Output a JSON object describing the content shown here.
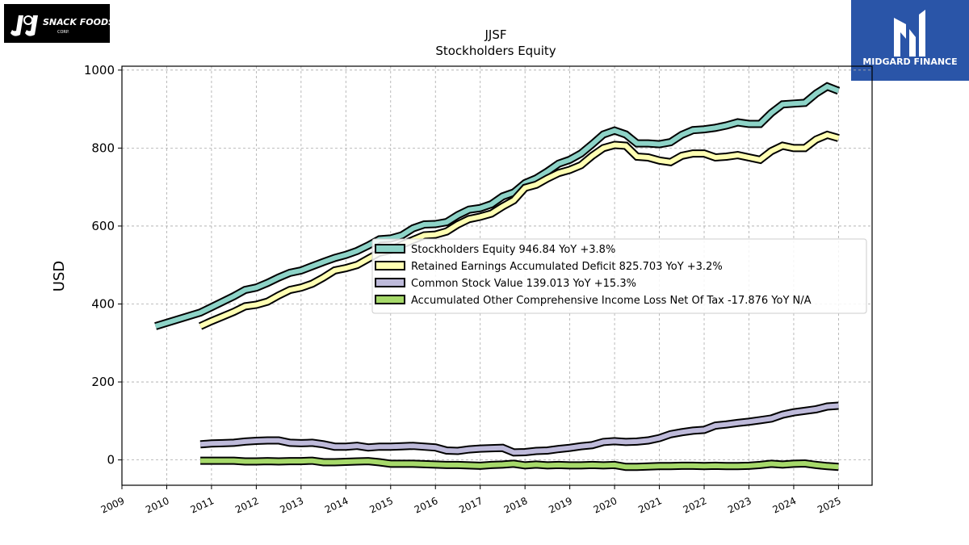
{
  "brand": {
    "left_logo_text": "J&J SNACK FOODS",
    "right_logo_text": "MIDGARD FINANCE"
  },
  "chart_data": {
    "type": "line",
    "title": "JJSF",
    "subtitle": "Stockholders  Equity",
    "xlabel": "",
    "ylabel": "USD",
    "xlim": [
      2009.0,
      2025.75
    ],
    "ylim": [
      -65,
      1010
    ],
    "yticks": [
      0,
      200,
      400,
      600,
      800,
      1000
    ],
    "xticks": [
      2009,
      2010,
      2011,
      2012,
      2013,
      2014,
      2015,
      2016,
      2017,
      2018,
      2019,
      2020,
      2021,
      2022,
      2023,
      2024,
      2025
    ],
    "grid": true,
    "legend_position": "center-right",
    "series": [
      {
        "name": "Stockholders Equity",
        "legend": "Stockholders Equity  946.84 YoY +3.8%",
        "color": "#8dd3c7",
        "points": [
          [
            2009.75,
            343
          ],
          [
            2010.75,
            378
          ],
          [
            2011.0,
            392
          ],
          [
            2011.25,
            406
          ],
          [
            2011.5,
            420
          ],
          [
            2011.75,
            436
          ],
          [
            2012.0,
            442
          ],
          [
            2012.25,
            454
          ],
          [
            2012.5,
            468
          ],
          [
            2012.75,
            480
          ],
          [
            2013.0,
            486
          ],
          [
            2013.25,
            497
          ],
          [
            2013.5,
            508
          ],
          [
            2013.75,
            518
          ],
          [
            2014.0,
            526
          ],
          [
            2014.25,
            536
          ],
          [
            2014.5,
            550
          ],
          [
            2014.75,
            566
          ],
          [
            2015.0,
            568
          ],
          [
            2015.25,
            576
          ],
          [
            2015.5,
            594
          ],
          [
            2015.75,
            604
          ],
          [
            2016.0,
            605
          ],
          [
            2016.25,
            610
          ],
          [
            2016.5,
            628
          ],
          [
            2016.75,
            642
          ],
          [
            2017.0,
            646
          ],
          [
            2017.25,
            656
          ],
          [
            2017.5,
            676
          ],
          [
            2017.75,
            686
          ],
          [
            2018.0,
            710
          ],
          [
            2018.25,
            722
          ],
          [
            2018.5,
            740
          ],
          [
            2018.75,
            760
          ],
          [
            2019.0,
            770
          ],
          [
            2019.25,
            786
          ],
          [
            2019.5,
            810
          ],
          [
            2019.75,
            835
          ],
          [
            2020.0,
            845
          ],
          [
            2020.25,
            835
          ],
          [
            2020.5,
            812
          ],
          [
            2020.75,
            812
          ],
          [
            2021.0,
            810
          ],
          [
            2021.25,
            815
          ],
          [
            2021.5,
            834
          ],
          [
            2021.75,
            846
          ],
          [
            2022.0,
            848
          ],
          [
            2022.25,
            852
          ],
          [
            2022.5,
            858
          ],
          [
            2022.75,
            866
          ],
          [
            2023.0,
            862
          ],
          [
            2023.25,
            862
          ],
          [
            2023.5,
            890
          ],
          [
            2023.75,
            912
          ],
          [
            2024.0,
            914
          ],
          [
            2024.25,
            916
          ],
          [
            2024.5,
            940
          ],
          [
            2024.75,
            958
          ],
          [
            2025.0,
            946.84
          ]
        ]
      },
      {
        "name": "Retained Earnings Accumulated Deficit",
        "legend": "Retained Earnings Accumulated Deficit  825.703 YoY +3.2%",
        "color": "#ffffb3",
        "points": [
          [
            2010.75,
            343
          ],
          [
            2011.0,
            356
          ],
          [
            2011.25,
            368
          ],
          [
            2011.5,
            380
          ],
          [
            2011.75,
            394
          ],
          [
            2012.0,
            398
          ],
          [
            2012.25,
            406
          ],
          [
            2012.5,
            422
          ],
          [
            2012.75,
            436
          ],
          [
            2013.0,
            442
          ],
          [
            2013.25,
            452
          ],
          [
            2013.5,
            468
          ],
          [
            2013.75,
            486
          ],
          [
            2014.0,
            492
          ],
          [
            2014.25,
            500
          ],
          [
            2014.5,
            516
          ],
          [
            2014.75,
            532
          ],
          [
            2015.0,
            538
          ],
          [
            2015.25,
            552
          ],
          [
            2015.5,
            564
          ],
          [
            2015.75,
            576
          ],
          [
            2016.0,
            578
          ],
          [
            2016.25,
            586
          ],
          [
            2016.5,
            604
          ],
          [
            2016.75,
            618
          ],
          [
            2017.0,
            624
          ],
          [
            2017.25,
            632
          ],
          [
            2017.5,
            650
          ],
          [
            2017.75,
            666
          ],
          [
            2018.0,
            698
          ],
          [
            2018.25,
            706
          ],
          [
            2018.5,
            722
          ],
          [
            2018.75,
            736
          ],
          [
            2019.0,
            744
          ],
          [
            2019.25,
            756
          ],
          [
            2019.5,
            780
          ],
          [
            2019.75,
            800
          ],
          [
            2020.0,
            808
          ],
          [
            2020.25,
            806
          ],
          [
            2020.5,
            778
          ],
          [
            2020.75,
            776
          ],
          [
            2021.0,
            768
          ],
          [
            2021.25,
            764
          ],
          [
            2021.5,
            780
          ],
          [
            2021.75,
            786
          ],
          [
            2022.0,
            786
          ],
          [
            2022.25,
            776
          ],
          [
            2022.5,
            778
          ],
          [
            2022.75,
            782
          ],
          [
            2023.0,
            776
          ],
          [
            2023.25,
            770
          ],
          [
            2023.5,
            792
          ],
          [
            2023.75,
            806
          ],
          [
            2024.0,
            800
          ],
          [
            2024.25,
            800
          ],
          [
            2024.5,
            822
          ],
          [
            2024.75,
            834
          ],
          [
            2025.0,
            825.703
          ]
        ]
      },
      {
        "name": "Common Stock Value",
        "legend": "Common Stock Value  139.013 YoY +15.3%",
        "color": "#bebada",
        "points": [
          [
            2010.75,
            40
          ],
          [
            2011.0,
            42
          ],
          [
            2011.25,
            43
          ],
          [
            2011.5,
            44
          ],
          [
            2011.75,
            47
          ],
          [
            2012.0,
            49
          ],
          [
            2012.25,
            50
          ],
          [
            2012.5,
            50
          ],
          [
            2012.75,
            44
          ],
          [
            2013.0,
            43
          ],
          [
            2013.25,
            44
          ],
          [
            2013.5,
            40
          ],
          [
            2013.75,
            34
          ],
          [
            2014.0,
            34
          ],
          [
            2014.25,
            36
          ],
          [
            2014.5,
            32
          ],
          [
            2014.75,
            34
          ],
          [
            2015.0,
            34
          ],
          [
            2015.25,
            35
          ],
          [
            2015.5,
            36
          ],
          [
            2015.75,
            34
          ],
          [
            2016.0,
            32
          ],
          [
            2016.25,
            24
          ],
          [
            2016.5,
            23
          ],
          [
            2016.75,
            27
          ],
          [
            2017.0,
            29
          ],
          [
            2017.25,
            30
          ],
          [
            2017.5,
            31
          ],
          [
            2017.75,
            19
          ],
          [
            2018.0,
            20
          ],
          [
            2018.25,
            23
          ],
          [
            2018.5,
            24
          ],
          [
            2018.75,
            28
          ],
          [
            2019.0,
            31
          ],
          [
            2019.25,
            35
          ],
          [
            2019.5,
            38
          ],
          [
            2019.75,
            46
          ],
          [
            2020.0,
            48
          ],
          [
            2020.25,
            46
          ],
          [
            2020.5,
            47
          ],
          [
            2020.75,
            50
          ],
          [
            2021.0,
            56
          ],
          [
            2021.25,
            66
          ],
          [
            2021.5,
            71
          ],
          [
            2021.75,
            75
          ],
          [
            2022.0,
            77
          ],
          [
            2022.25,
            88
          ],
          [
            2022.5,
            91
          ],
          [
            2022.75,
            95
          ],
          [
            2023.0,
            98
          ],
          [
            2023.25,
            102
          ],
          [
            2023.5,
            106
          ],
          [
            2023.75,
            116
          ],
          [
            2024.0,
            122
          ],
          [
            2024.25,
            126
          ],
          [
            2024.5,
            130
          ],
          [
            2024.75,
            137
          ],
          [
            2025.0,
            139.013
          ]
        ]
      },
      {
        "name": "Accumulated Other Comprehensive Income Loss Net Of Tax",
        "legend": "Accumulated Other Comprehensive Income Loss Net Of Tax  -17.876 YoY N/A",
        "color": "#a6d96a",
        "points": [
          [
            2010.75,
            -2
          ],
          [
            2011.0,
            -2
          ],
          [
            2011.25,
            -2
          ],
          [
            2011.5,
            -2
          ],
          [
            2011.75,
            -4
          ],
          [
            2012.0,
            -4
          ],
          [
            2012.25,
            -3
          ],
          [
            2012.5,
            -4
          ],
          [
            2012.75,
            -3
          ],
          [
            2013.0,
            -3
          ],
          [
            2013.25,
            -2
          ],
          [
            2013.5,
            -6
          ],
          [
            2013.75,
            -6
          ],
          [
            2014.0,
            -5
          ],
          [
            2014.25,
            -4
          ],
          [
            2014.5,
            -3
          ],
          [
            2014.75,
            -6
          ],
          [
            2015.0,
            -10
          ],
          [
            2015.25,
            -10
          ],
          [
            2015.5,
            -10
          ],
          [
            2015.75,
            -11
          ],
          [
            2016.0,
            -12
          ],
          [
            2016.25,
            -13
          ],
          [
            2016.5,
            -13
          ],
          [
            2016.75,
            -14
          ],
          [
            2017.0,
            -15
          ],
          [
            2017.25,
            -13
          ],
          [
            2017.5,
            -12
          ],
          [
            2017.75,
            -10
          ],
          [
            2018.0,
            -14
          ],
          [
            2018.25,
            -12
          ],
          [
            2018.5,
            -14
          ],
          [
            2018.75,
            -13
          ],
          [
            2019.0,
            -14
          ],
          [
            2019.25,
            -14
          ],
          [
            2019.5,
            -13
          ],
          [
            2019.75,
            -14
          ],
          [
            2020.0,
            -13
          ],
          [
            2020.25,
            -18
          ],
          [
            2020.5,
            -18
          ],
          [
            2020.75,
            -17
          ],
          [
            2021.0,
            -16
          ],
          [
            2021.25,
            -16
          ],
          [
            2021.5,
            -15
          ],
          [
            2021.75,
            -15
          ],
          [
            2022.0,
            -16
          ],
          [
            2022.25,
            -15
          ],
          [
            2022.5,
            -16
          ],
          [
            2022.75,
            -16
          ],
          [
            2023.0,
            -15
          ],
          [
            2023.25,
            -13
          ],
          [
            2023.5,
            -10
          ],
          [
            2023.75,
            -12
          ],
          [
            2024.0,
            -10
          ],
          [
            2024.25,
            -9
          ],
          [
            2024.5,
            -13
          ],
          [
            2024.75,
            -16
          ],
          [
            2025.0,
            -17.876
          ]
        ]
      }
    ]
  }
}
